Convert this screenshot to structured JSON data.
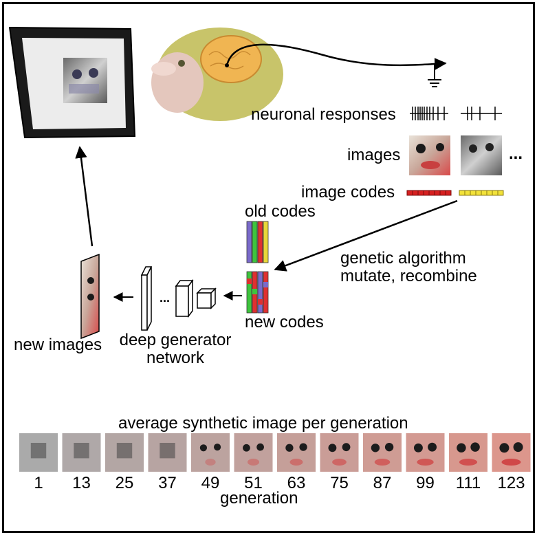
{
  "labels": {
    "neuronal_responses": "neuronal responses",
    "images": "images",
    "image_codes": "image codes",
    "old_codes": "old codes",
    "genetic_line1": "genetic algorithm",
    "genetic_line2": "mutate, recombine",
    "new_codes": "new codes",
    "new_images": "new images",
    "deep_gen_line1": "deep generator",
    "deep_gen_line2": "network",
    "ellipsis": "...",
    "average_title": "average synthetic image per generation",
    "generation": "generation"
  },
  "generations": [
    "1",
    "13",
    "25",
    "37",
    "49",
    "51",
    "63",
    "75",
    "87",
    "99",
    "111",
    "123"
  ],
  "colors": {
    "code_red": "#d62020",
    "code_yellow": "#f2e23a",
    "brain": "#f0b552",
    "monkey_fur": "#c8c46a"
  }
}
